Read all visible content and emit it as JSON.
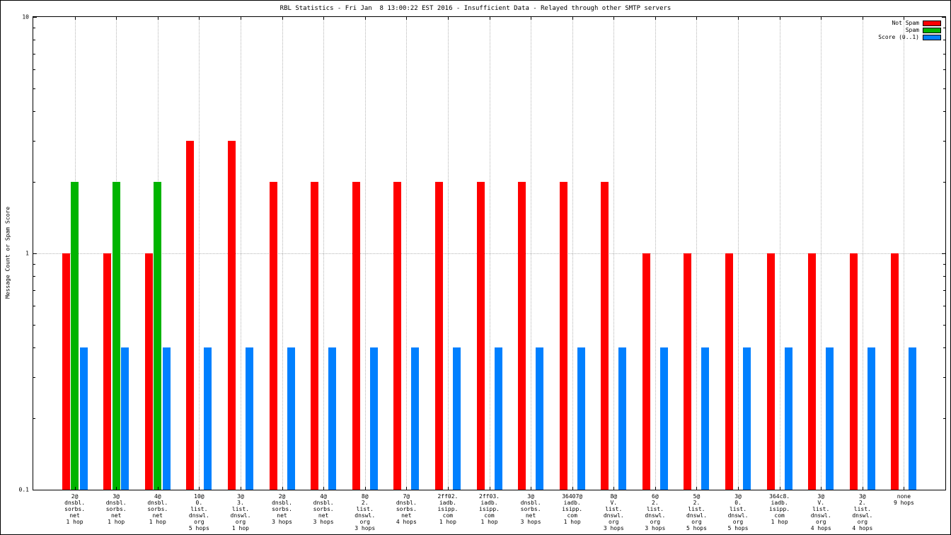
{
  "title": "RBL Statistics - Fri Jan  8 13:00:22 EST 2016 - Insufficient Data - Relayed through other SMTP servers",
  "ylabel": "Message Count or Spam Score",
  "legend": [
    {
      "label": "Not Spam",
      "color": "#ff0000"
    },
    {
      "label": "Spam",
      "color": "#00b400"
    },
    {
      "label": "Score (0..1)",
      "color": "#0080ff"
    }
  ],
  "chart_data": {
    "type": "bar",
    "yscale": "log",
    "ylim": [
      0.1,
      10
    ],
    "grid": true,
    "legend_position": "top-right",
    "yticks": [
      {
        "label": "10",
        "value": 10
      },
      {
        "label": "1",
        "value": 1
      },
      {
        "label": "0.1",
        "value": 0.1
      }
    ],
    "categories": [
      [
        "2@",
        "dnsbl.",
        "sorbs.",
        "net",
        "1 hop"
      ],
      [
        "3@",
        "dnsbl.",
        "sorbs.",
        "net",
        "1 hop"
      ],
      [
        "4@",
        "dnsbl.",
        "sorbs.",
        "net",
        "1 hop"
      ],
      [
        "10@",
        "0.",
        "list.",
        "dnswl.",
        "org",
        "5 hops"
      ],
      [
        "3@",
        "3.",
        "list.",
        "dnswl.",
        "org",
        "1 hop"
      ],
      [
        "2@",
        "dnsbl.",
        "sorbs.",
        "net",
        "3 hops"
      ],
      [
        "4@",
        "dnsbl.",
        "sorbs.",
        "net",
        "3 hops"
      ],
      [
        "8@",
        "2.",
        "list.",
        "dnswl.",
        "org",
        "3 hops"
      ],
      [
        "7@",
        "dnsbl.",
        "sorbs.",
        "net",
        "4 hops"
      ],
      [
        "2ff02.",
        "iadb.",
        "isipp.",
        "com",
        "1 hop"
      ],
      [
        "2ff03.",
        "iadb.",
        "isipp.",
        "com",
        "1 hop"
      ],
      [
        "3@",
        "dnsbl.",
        "sorbs.",
        "net",
        "3 hops"
      ],
      [
        "36407@",
        "iadb.",
        "isipp.",
        "com",
        "1 hop"
      ],
      [
        "8@",
        "V.",
        "list.",
        "dnswl.",
        "org",
        "3 hops"
      ],
      [
        "6@",
        "2.",
        "list.",
        "dnswl.",
        "org",
        "3 hops"
      ],
      [
        "5@",
        "2.",
        "list.",
        "dnswl.",
        "org",
        "5 hops"
      ],
      [
        "3@",
        "0.",
        "list.",
        "dnswl.",
        "org",
        "5 hops"
      ],
      [
        "364c8.",
        "iadb.",
        "isipp.",
        "com",
        "1 hop"
      ],
      [
        "3@",
        "V.",
        "list.",
        "dnswl.",
        "org",
        "4 hops"
      ],
      [
        "3@",
        "2.",
        "list.",
        "dnswl.",
        "org",
        "4 hops"
      ],
      [
        "none",
        "9 hops"
      ]
    ],
    "series": [
      {
        "name": "Not Spam",
        "color": "#ff0000",
        "values": [
          1,
          1,
          1,
          3,
          3,
          2,
          2,
          2,
          2,
          2,
          2,
          2,
          2,
          2,
          1,
          1,
          1,
          1,
          1,
          1,
          1
        ]
      },
      {
        "name": "Spam",
        "color": "#00b400",
        "values": [
          2,
          2,
          2,
          null,
          null,
          null,
          null,
          null,
          null,
          null,
          null,
          null,
          null,
          null,
          null,
          null,
          null,
          null,
          null,
          null,
          null
        ]
      },
      {
        "name": "Score (0..1)",
        "color": "#0080ff",
        "values": [
          0.4,
          0.4,
          0.4,
          0.4,
          0.4,
          0.4,
          0.4,
          0.4,
          0.4,
          0.4,
          0.4,
          0.4,
          0.4,
          0.4,
          0.4,
          0.4,
          0.4,
          0.4,
          0.4,
          0.4,
          0.4
        ]
      }
    ]
  }
}
